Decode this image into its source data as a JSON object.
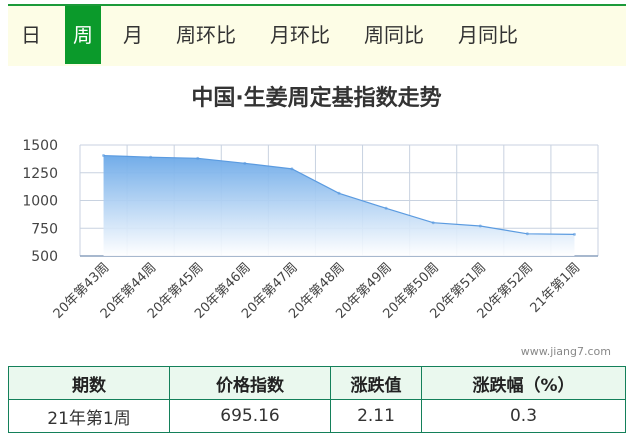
{
  "tabs": [
    {
      "label": "日",
      "active": false
    },
    {
      "label": "周",
      "active": true
    },
    {
      "label": "月",
      "active": false
    },
    {
      "label": "周环比",
      "active": false
    },
    {
      "label": "月环比",
      "active": false
    },
    {
      "label": "周同比",
      "active": false
    },
    {
      "label": "月同比",
      "active": false
    }
  ],
  "chart_data": {
    "type": "area",
    "title": "中国·生姜周定基指数走势",
    "xlabel": "",
    "ylabel": "",
    "categories": [
      "20年第43周",
      "20年第44周",
      "20年第45周",
      "20年第46周",
      "20年第47周",
      "20年第48周",
      "20年第49周",
      "20年第50周",
      "20年第51周",
      "20年第52周",
      "21年第1周"
    ],
    "values": [
      1405,
      1390,
      1380,
      1335,
      1285,
      1065,
      930,
      800,
      770,
      700,
      695
    ],
    "ylim": [
      500,
      1500
    ],
    "yticks": [
      500,
      750,
      1000,
      1250,
      1500
    ],
    "grid": true,
    "colors": {
      "fill_top": "#6aa8e8",
      "fill_bottom": "#ffffff",
      "line": "#5b9be0",
      "grid": "#c8d2e0"
    }
  },
  "watermark": "www.jiang7.com",
  "table": {
    "headers": [
      "期数",
      "价格指数",
      "涨跌值",
      "涨跌幅（%）"
    ],
    "rows": [
      [
        "21年第1周",
        "695.16",
        "2.11",
        "0.3"
      ]
    ]
  }
}
